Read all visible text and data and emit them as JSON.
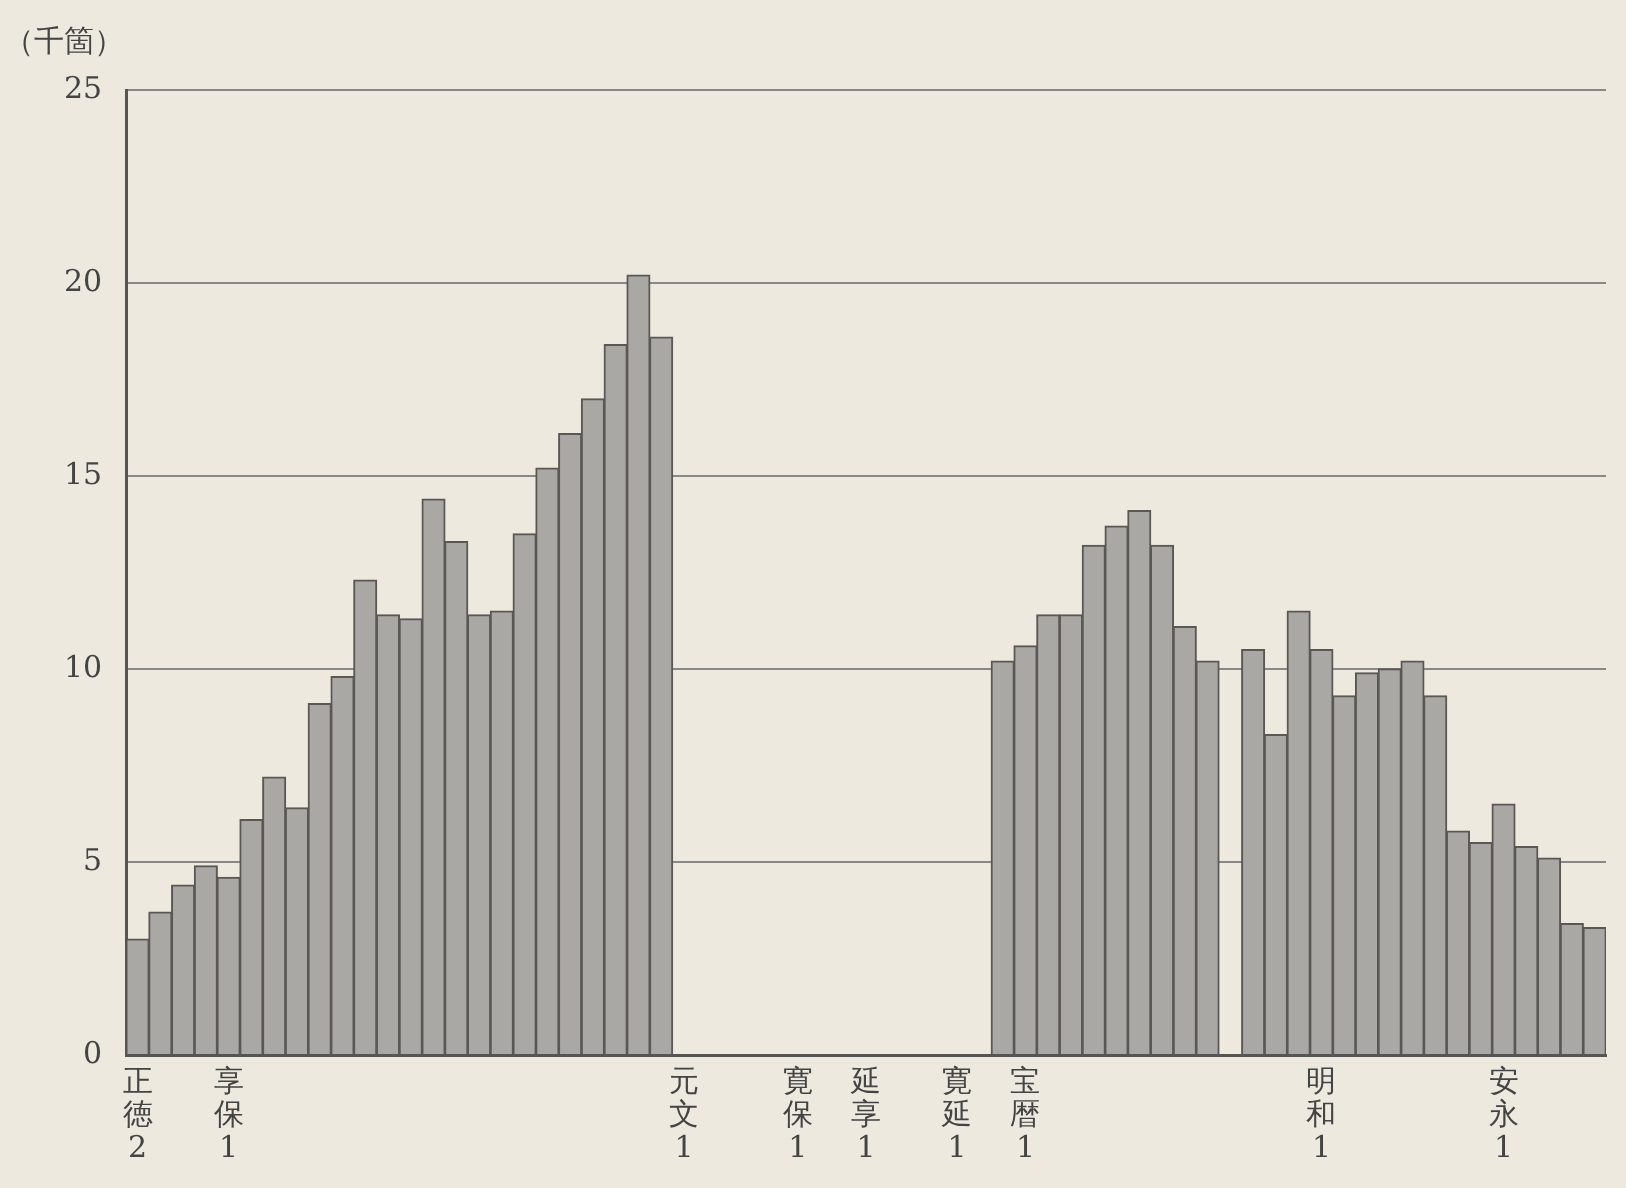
{
  "chart_data": {
    "type": "bar",
    "ylabel": "（千箇）",
    "categories": [
      "正徳2",
      null,
      null,
      null,
      "享保1",
      null,
      null,
      null,
      null,
      null,
      null,
      null,
      null,
      null,
      null,
      null,
      null,
      null,
      null,
      null,
      null,
      null,
      null,
      null,
      "元文1",
      null,
      null,
      null,
      null,
      "寛保1",
      null,
      null,
      "延享1",
      null,
      null,
      null,
      "寛延1",
      null,
      null,
      "宝暦1",
      null,
      null,
      null,
      null,
      null,
      null,
      null,
      null,
      null,
      null,
      null,
      null,
      "明和1",
      null,
      null,
      null,
      null,
      null,
      null,
      null,
      "安永1",
      null,
      null,
      null,
      null
    ],
    "values": [
      3.0,
      3.7,
      4.4,
      4.9,
      4.6,
      6.1,
      7.2,
      6.4,
      9.1,
      9.8,
      12.3,
      11.4,
      11.3,
      14.4,
      13.3,
      11.4,
      11.5,
      13.5,
      15.2,
      16.1,
      17.0,
      18.4,
      20.2,
      18.6,
      null,
      null,
      null,
      null,
      null,
      null,
      null,
      null,
      null,
      null,
      null,
      null,
      null,
      null,
      10.2,
      10.6,
      11.4,
      11.4,
      13.2,
      13.7,
      14.1,
      13.2,
      11.1,
      10.2,
      null,
      10.5,
      8.3,
      11.5,
      10.5,
      9.3,
      9.9,
      10.0,
      10.2,
      9.3,
      5.8,
      5.5,
      6.5,
      5.4,
      5.1,
      3.4,
      3.3
    ],
    "color": "#aaa8a5",
    "ylim": [
      0,
      25
    ],
    "yticks": [
      0,
      5,
      10,
      15,
      20,
      25
    ],
    "grid": "y"
  }
}
